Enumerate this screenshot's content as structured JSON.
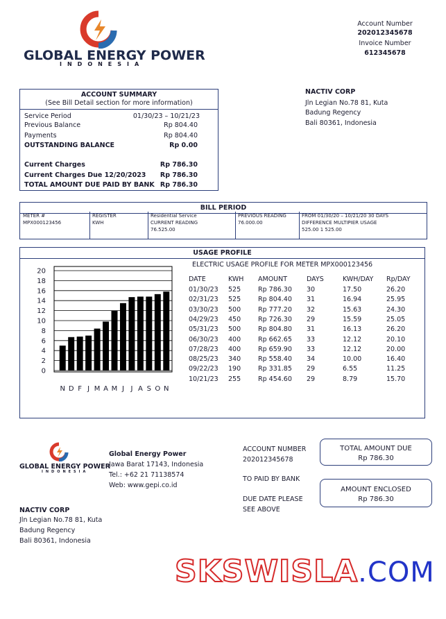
{
  "header": {
    "company": "GLOBAL ENERGY POWER",
    "country": "INDONESIA",
    "account_label": "Account Number",
    "account_number": "202012345678",
    "invoice_label": "Invoice Number",
    "invoice_number": "612345678"
  },
  "customer": {
    "name": "NACTIV CORP",
    "lines": [
      "Jln Legian No.78 81, Kuta",
      "Badung Regency",
      "Bali 80361, Indonesia"
    ]
  },
  "summary": {
    "title": "ACCOUNT SUMMARY",
    "note": "(See Bill Detail section for more information)",
    "rows": [
      [
        "Service Period",
        "01/30/23 – 10/21/23"
      ],
      [
        "Previous Balance",
        "Rp 804.40"
      ],
      [
        "Payments",
        "Rp 804.40"
      ],
      [
        "OUTSTANDING BALANCE",
        "Rp 0.00"
      ],
      [
        "Current Charges",
        "Rp 786.30"
      ],
      [
        "Current Charges  Due 12/20/2023",
        "Rp 786.30"
      ],
      [
        "TOTAL AMOUNT DUE PAID BY BANK",
        "Rp 786.30"
      ]
    ]
  },
  "bill_period": {
    "title": "BILL PERIOD",
    "columns": [
      [
        "METER #",
        "MPX000123456"
      ],
      [
        "REGISTER",
        "KWH"
      ],
      [
        "Residential  Service",
        "CURRENT  READING",
        "76.525.00"
      ],
      [
        "PREVIOUS READING",
        "76.000.00"
      ],
      [
        "FROM  01/30/20 – 10/21/20   30 DAYS",
        "DIFFERENCE    MULTIPIER    USAGE",
        "525.00              1             525.00"
      ]
    ]
  },
  "usage": {
    "title": "USAGE PROFILE",
    "subtitle": "ELECTRIC USAGE PROFILE FOR METER MPX000123456",
    "table": {
      "header": [
        "DATE",
        "KWH",
        "AMOUNT",
        "DAYS",
        "KWH/DAY",
        "Rp/DAY"
      ],
      "rows": [
        [
          "01/30/23",
          "525",
          "Rp 786.30",
          "30",
          "17.50",
          "26.20"
        ],
        [
          "02/31/23",
          "525",
          "Rp 804.40",
          "31",
          "16.94",
          "25.95"
        ],
        [
          "03/30/23",
          "500",
          "Rp 777.20",
          "32",
          "15.63",
          "24.30"
        ],
        [
          "04/29/23",
          "450",
          "Rp 726.30",
          "29",
          "15.59",
          "25.05"
        ],
        [
          "05/31/23",
          "500",
          "Rp 804.80",
          "31",
          "16.13",
          "26.20"
        ],
        [
          "06/30/23",
          "400",
          "Rp 662.65",
          "33",
          "12.12",
          "20.10"
        ],
        [
          "07/28/23",
          "400",
          "Rp 659.90",
          "33",
          "12.12",
          "20.00"
        ],
        [
          "08/25/23",
          "340",
          "Rp 558.40",
          "34",
          "10.00",
          "16.40"
        ],
        [
          "09/22/23",
          "190",
          "Rp 331.85",
          "29",
          "6.55",
          "11.25"
        ],
        [
          "10/21/23",
          "255",
          "Rp 454.60",
          "29",
          "8.79",
          "15.70"
        ]
      ]
    }
  },
  "chart_data": {
    "type": "bar",
    "categories": [
      "N",
      "D",
      "F",
      "J",
      "M",
      "A",
      "M",
      "J",
      "J",
      "A",
      "S",
      "O",
      "N"
    ],
    "values": [
      5,
      6.7,
      6.8,
      7,
      8.4,
      9.8,
      12,
      13.5,
      14.7,
      14.8,
      14.8,
      15.3,
      15.8
    ],
    "color": "#000000",
    "ylim": [
      0,
      20
    ],
    "yticks": [
      0,
      2,
      4,
      6,
      8,
      10,
      12,
      14,
      16,
      18,
      20
    ],
    "grid": true
  },
  "footer": {
    "company": "GLOBAL ENERGY POWER",
    "country": "INDONESIA",
    "name": "Global Energy Power",
    "address": "Jawa Barat 17143, Indonesia",
    "tel": "Tel.: +62 21 71138574",
    "web": "Web: www.gepi.co.id",
    "account_label": "ACCOUNT NUMBER",
    "account_number": "202012345678",
    "paid_by": "TO PAID BY BANK",
    "due1": "DUE DATE PLEASE",
    "due2": "SEE ABOVE",
    "total_label": "TOTAL AMOUNT DUE",
    "total_value": "Rp 786.30",
    "enclosed_label": "AMOUNT ENCLOSED",
    "enclosed_value": "Rp 786.30"
  },
  "watermark": {
    "main": "SKSWISLA",
    "suffix": ".COM"
  }
}
